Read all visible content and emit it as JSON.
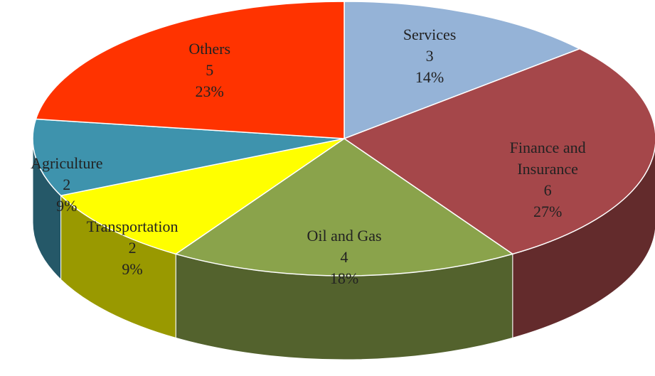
{
  "chart_data": {
    "type": "pie",
    "categories": [
      "Services",
      "Finance and Insurance",
      "Oil and Gas",
      "Transportation",
      "Agriculture",
      "Others"
    ],
    "values": [
      3,
      6,
      4,
      2,
      2,
      5
    ],
    "value_labels": [
      "14%",
      "27%",
      "18%",
      "9%",
      "9%",
      "23%"
    ],
    "colors": [
      "#95b3d7",
      "#a5474a",
      "#8aa34b",
      "#ffff00",
      "#3e93ad",
      "#ff3300"
    ]
  }
}
